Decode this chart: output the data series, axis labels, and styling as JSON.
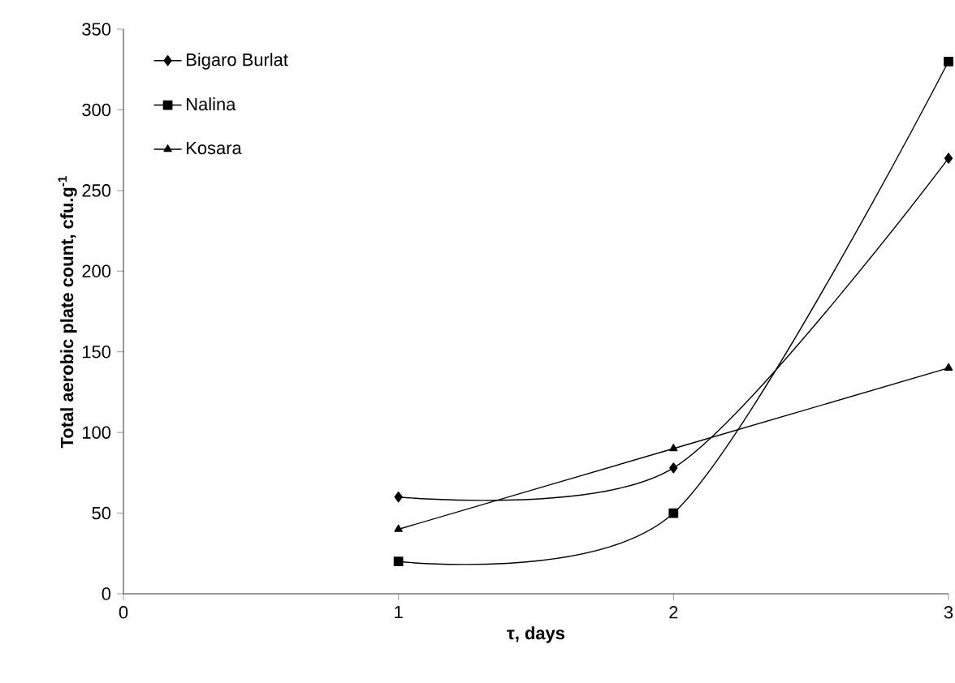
{
  "chart_data": {
    "type": "line",
    "xlabel": "τ, days",
    "ylabel": "Total aerobic plate count, cfu.g$^{-1}$",
    "x": [
      1,
      2,
      3
    ],
    "xlim": [
      0,
      3
    ],
    "xticks": [
      0,
      1,
      2,
      3
    ],
    "ylim": [
      0,
      350
    ],
    "yticks": [
      0,
      50,
      100,
      150,
      200,
      250,
      300,
      350
    ],
    "grid": false,
    "legend": "top left",
    "series": [
      {
        "name": "Bigaro Burlat",
        "color": "#000000",
        "marker": "diamond",
        "values": [
          60,
          78,
          270
        ]
      },
      {
        "name": "Nalina",
        "color": "#000000",
        "marker": "square",
        "values": [
          20,
          50,
          330
        ]
      },
      {
        "name": "Kosara",
        "color": "#000000",
        "marker": "triangle",
        "values": [
          40,
          90,
          140
        ]
      }
    ]
  }
}
